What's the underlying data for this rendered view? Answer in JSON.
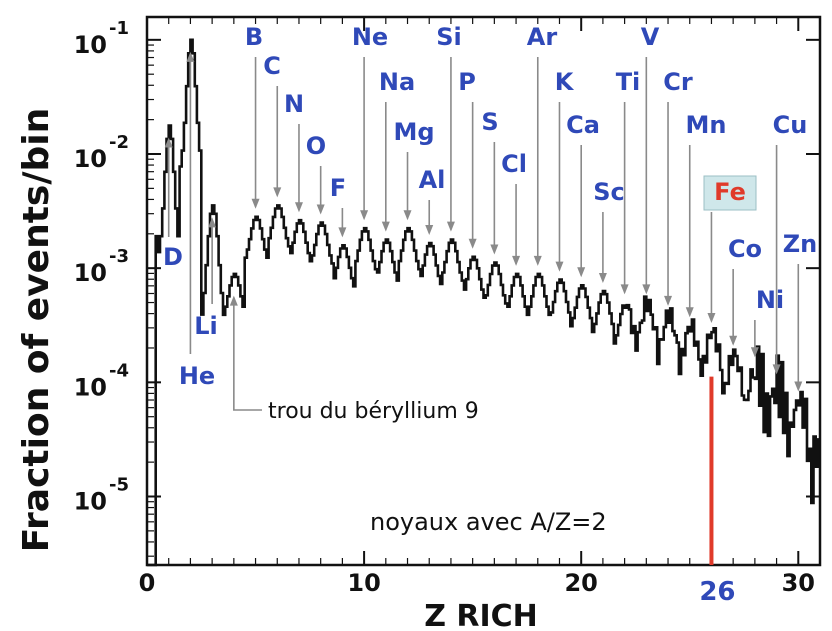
{
  "chart_data": {
    "type": "line",
    "title": "",
    "xlabel": "Z RICH",
    "ylabel": "Fraction of events/bin",
    "xlim": [
      0,
      31
    ],
    "ylim_log10": [
      -5.6,
      -0.8
    ],
    "log_scale_y": true,
    "x_ticks": [
      {
        "value": 0,
        "label": "0"
      },
      {
        "value": 10,
        "label": "10"
      },
      {
        "value": 20,
        "label": "20"
      },
      {
        "value": 30,
        "label": "30"
      }
    ],
    "y_ticks": [
      {
        "value": -1,
        "base": "10",
        "exp": "-1"
      },
      {
        "value": -2,
        "base": "10",
        "exp": "-2"
      },
      {
        "value": -3,
        "base": "10",
        "exp": "-3"
      },
      {
        "value": -4,
        "base": "10",
        "exp": "-4"
      },
      {
        "value": -5,
        "base": "10",
        "exp": "-5"
      }
    ],
    "series": [
      {
        "color": "#111111",
        "peaks": [
          {
            "z": 1,
            "log10y": -1.75
          },
          {
            "z": 2,
            "log10y": -1.0
          },
          {
            "z": 3,
            "log10y": -2.45
          },
          {
            "z": 4,
            "log10y": -3.05
          },
          {
            "z": 5,
            "log10y": -2.55
          },
          {
            "z": 6,
            "log10y": -2.45
          },
          {
            "z": 7,
            "log10y": -2.58
          },
          {
            "z": 8,
            "log10y": -2.6
          },
          {
            "z": 9,
            "log10y": -2.8
          },
          {
            "z": 10,
            "log10y": -2.65
          },
          {
            "z": 11,
            "log10y": -2.75
          },
          {
            "z": 12,
            "log10y": -2.65
          },
          {
            "z": 13,
            "log10y": -2.78
          },
          {
            "z": 14,
            "log10y": -2.75
          },
          {
            "z": 15,
            "log10y": -2.9
          },
          {
            "z": 16,
            "log10y": -2.95
          },
          {
            "z": 17,
            "log10y": -3.05
          },
          {
            "z": 18,
            "log10y": -3.05
          },
          {
            "z": 19,
            "log10y": -3.1
          },
          {
            "z": 20,
            "log10y": -3.15
          },
          {
            "z": 21,
            "log10y": -3.2
          },
          {
            "z": 22,
            "log10y": -3.3
          },
          {
            "z": 23,
            "log10y": -3.3
          },
          {
            "z": 24,
            "log10y": -3.4
          },
          {
            "z": 25,
            "log10y": -3.5
          },
          {
            "z": 26,
            "log10y": -3.55
          },
          {
            "z": 27,
            "log10y": -3.75
          },
          {
            "z": 28,
            "log10y": -3.85
          },
          {
            "z": 29,
            "log10y": -4.0
          },
          {
            "z": 30,
            "log10y": -4.15
          },
          {
            "z": 31,
            "log10y": -4.5
          }
        ]
      }
    ],
    "element_labels": [
      {
        "text": "D",
        "z": 1
      },
      {
        "text": "He",
        "z": 2
      },
      {
        "text": "Li",
        "z": 3
      },
      {
        "text": "B",
        "z": 5
      },
      {
        "text": "C",
        "z": 6
      },
      {
        "text": "N",
        "z": 7
      },
      {
        "text": "O",
        "z": 8
      },
      {
        "text": "F",
        "z": 9
      },
      {
        "text": "Ne",
        "z": 10
      },
      {
        "text": "Na",
        "z": 11
      },
      {
        "text": "Mg",
        "z": 12
      },
      {
        "text": "Al",
        "z": 13
      },
      {
        "text": "Si",
        "z": 14
      },
      {
        "text": "P",
        "z": 15
      },
      {
        "text": "S",
        "z": 16
      },
      {
        "text": "Cl",
        "z": 17
      },
      {
        "text": "Ar",
        "z": 18
      },
      {
        "text": "K",
        "z": 19
      },
      {
        "text": "Ca",
        "z": 20
      },
      {
        "text": "Sc",
        "z": 21
      },
      {
        "text": "Ti",
        "z": 22
      },
      {
        "text": "V",
        "z": 23
      },
      {
        "text": "Cr",
        "z": 24
      },
      {
        "text": "Mn",
        "z": 25
      },
      {
        "text": "Fe",
        "z": 26,
        "highlight": true,
        "color": "#e03a2a",
        "box_color": "#cfe7ea"
      },
      {
        "text": "Co",
        "z": 27
      },
      {
        "text": "Ni",
        "z": 28
      },
      {
        "text": "Cu",
        "z": 29
      },
      {
        "text": "Zn",
        "z": 30
      }
    ],
    "annotations": [
      {
        "text": "trou du béryllium 9",
        "z": 4
      },
      {
        "text": "noyaux avec A/Z=2"
      },
      {
        "text": "26",
        "z": 26,
        "color": "#2f49b8",
        "line_color": "#e03a2a"
      }
    ],
    "label_color": "#2f49b8",
    "arrow_color": "#8a8a8a",
    "grid": false
  }
}
